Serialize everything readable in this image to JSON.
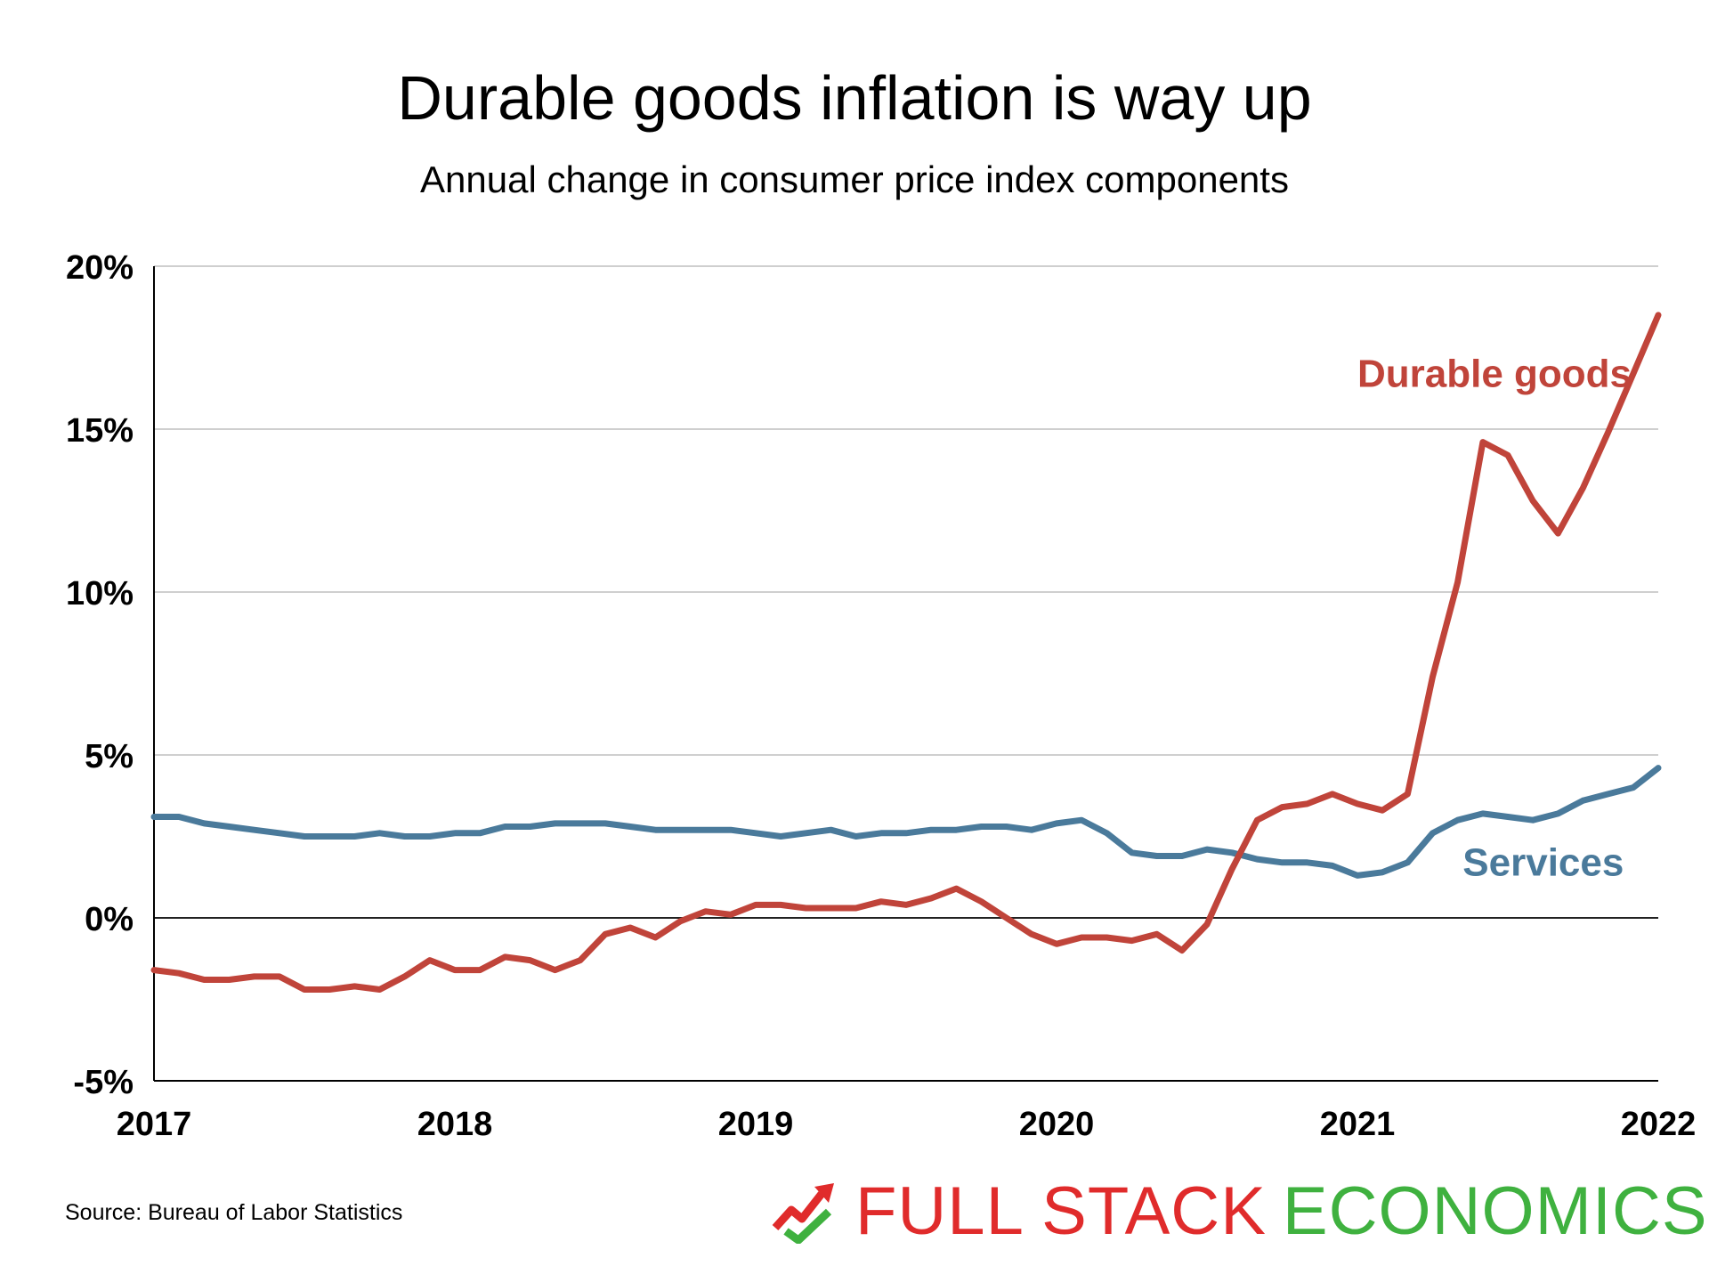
{
  "chart_data": {
    "type": "line",
    "title": "Durable goods inflation is way up",
    "subtitle": "Annual change in consumer price index components",
    "xlabel": "",
    "ylabel": "",
    "xlim": [
      2017,
      2022
    ],
    "ylim": [
      -5,
      20
    ],
    "x_ticks": [
      "2017",
      "2018",
      "2019",
      "2020",
      "2021",
      "2022"
    ],
    "y_ticks": [
      "20%",
      "15%",
      "10%",
      "5%",
      "0%",
      "-5%"
    ],
    "y_tick_values": [
      20,
      15,
      10,
      5,
      0,
      -5
    ],
    "grid": true,
    "series": [
      {
        "name": "Durable goods",
        "color": "#c0443a",
        "x": [
          2017.0,
          2017.083,
          2017.167,
          2017.25,
          2017.333,
          2017.417,
          2017.5,
          2017.583,
          2017.667,
          2017.75,
          2017.833,
          2017.917,
          2018.0,
          2018.083,
          2018.167,
          2018.25,
          2018.333,
          2018.417,
          2018.5,
          2018.583,
          2018.667,
          2018.75,
          2018.833,
          2018.917,
          2019.0,
          2019.083,
          2019.167,
          2019.25,
          2019.333,
          2019.417,
          2019.5,
          2019.583,
          2019.667,
          2019.75,
          2019.833,
          2019.917,
          2020.0,
          2020.083,
          2020.167,
          2020.25,
          2020.333,
          2020.417,
          2020.5,
          2020.583,
          2020.667,
          2020.75,
          2020.833,
          2020.917,
          2021.0,
          2021.083,
          2021.167,
          2021.25,
          2021.333,
          2021.417,
          2021.5,
          2021.583,
          2021.667,
          2021.75,
          2021.833,
          2021.917,
          2022.0
        ],
        "values": [
          -1.6,
          -1.7,
          -1.9,
          -1.9,
          -1.8,
          -1.8,
          -2.2,
          -2.2,
          -2.1,
          -2.2,
          -1.8,
          -1.3,
          -1.6,
          -1.6,
          -1.2,
          -1.3,
          -1.6,
          -1.3,
          -0.5,
          -0.3,
          -0.6,
          -0.1,
          0.2,
          0.1,
          0.4,
          0.4,
          0.3,
          0.3,
          0.3,
          0.5,
          0.4,
          0.6,
          0.9,
          0.5,
          0.0,
          -0.5,
          -0.8,
          -0.6,
          -0.6,
          -0.7,
          -0.5,
          -1.0,
          -0.2,
          1.5,
          3.0,
          3.4,
          3.5,
          3.8,
          3.5,
          3.3,
          3.8,
          7.4,
          10.3,
          14.6,
          14.2,
          12.8,
          11.8,
          13.2,
          14.9,
          16.7,
          18.5
        ]
      },
      {
        "name": "Services",
        "color": "#4a7a9b",
        "x": [
          2017.0,
          2017.083,
          2017.167,
          2017.25,
          2017.333,
          2017.417,
          2017.5,
          2017.583,
          2017.667,
          2017.75,
          2017.833,
          2017.917,
          2018.0,
          2018.083,
          2018.167,
          2018.25,
          2018.333,
          2018.417,
          2018.5,
          2018.583,
          2018.667,
          2018.75,
          2018.833,
          2018.917,
          2019.0,
          2019.083,
          2019.167,
          2019.25,
          2019.333,
          2019.417,
          2019.5,
          2019.583,
          2019.667,
          2019.75,
          2019.833,
          2019.917,
          2020.0,
          2020.083,
          2020.167,
          2020.25,
          2020.333,
          2020.417,
          2020.5,
          2020.583,
          2020.667,
          2020.75,
          2020.833,
          2020.917,
          2021.0,
          2021.083,
          2021.167,
          2021.25,
          2021.333,
          2021.417,
          2021.5,
          2021.583,
          2021.667,
          2021.75,
          2021.833,
          2021.917,
          2022.0
        ],
        "values": [
          3.1,
          3.1,
          2.9,
          2.8,
          2.7,
          2.6,
          2.5,
          2.5,
          2.5,
          2.6,
          2.5,
          2.5,
          2.6,
          2.6,
          2.8,
          2.8,
          2.9,
          2.9,
          2.9,
          2.8,
          2.7,
          2.7,
          2.7,
          2.7,
          2.6,
          2.5,
          2.6,
          2.7,
          2.5,
          2.6,
          2.6,
          2.7,
          2.7,
          2.8,
          2.8,
          2.7,
          2.9,
          3.0,
          2.6,
          2.0,
          1.9,
          1.9,
          2.1,
          2.0,
          1.8,
          1.7,
          1.7,
          1.6,
          1.3,
          1.4,
          1.7,
          2.6,
          3.0,
          3.2,
          3.1,
          3.0,
          3.2,
          3.6,
          3.8,
          4.0,
          4.6
        ]
      }
    ],
    "annotations": [
      {
        "text": "Durable goods",
        "color": "#c0443a",
        "x": 2021.0,
        "y": 16.3
      },
      {
        "text": "Services",
        "color": "#4a7a9b",
        "x": 2021.35,
        "y": 1.3
      }
    ]
  },
  "footer": {
    "source": "Source: Bureau of Labor Statistics",
    "logo_part1": "FULL STACK",
    "logo_part2": "ECONOMICS",
    "logo_icon": "trend-arrow-check-icon",
    "logo_colors": [
      "#e02b2b",
      "#3fb13f"
    ]
  }
}
